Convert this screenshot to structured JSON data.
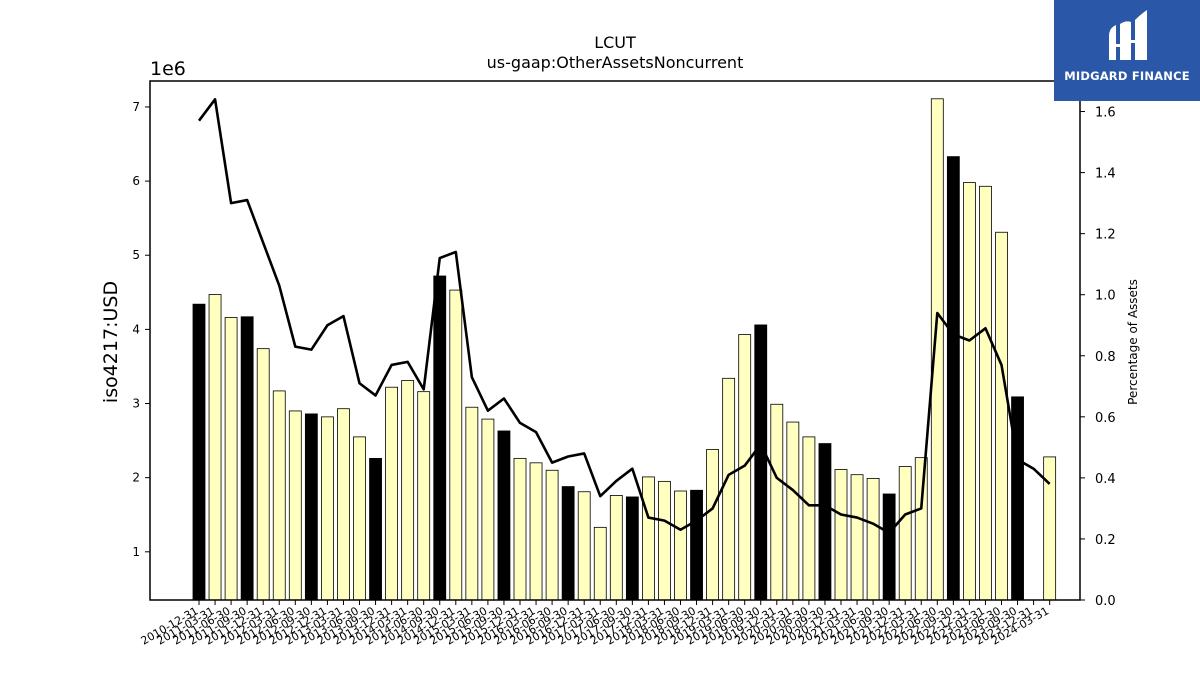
{
  "title": "LCUT",
  "subtitle": "us-gaap:OtherAssetsNoncurrent",
  "brand": {
    "name": "MIDGARD FINANCE",
    "color": "#2a57a8",
    "icon": "midgard-m-logo-icon"
  },
  "colors": {
    "bar_default": "#ffffc0",
    "bar_highlight": "#000000",
    "line": "#000000"
  },
  "chart_data": {
    "type": "bar",
    "left_axis": {
      "label": "iso4217:USD",
      "scale_label": "1e6",
      "ylim": [
        0.35,
        7.35
      ],
      "ticks": [
        1,
        2,
        3,
        4,
        5,
        6,
        7
      ]
    },
    "right_axis": {
      "label": "Percentage of Assets",
      "ylim": [
        0.0,
        1.7
      ],
      "ticks": [
        "0.0",
        "0.2",
        "0.4",
        "0.6",
        "0.8",
        "1.0",
        "1.2",
        "1.4",
        "1.6"
      ]
    },
    "categories": [
      "2010-12-31",
      "2011-03-31",
      "2011-06-30",
      "2011-09-30",
      "2011-12-31",
      "2012-03-31",
      "2012-06-30",
      "2012-09-30",
      "2012-12-31",
      "2013-03-31",
      "2013-06-30",
      "2013-09-30",
      "2013-12-31",
      "2014-03-31",
      "2014-06-30",
      "2014-09-30",
      "2014-12-31",
      "2015-03-31",
      "2015-06-30",
      "2015-09-30",
      "2015-12-31",
      "2016-03-31",
      "2016-06-30",
      "2016-09-30",
      "2016-12-31",
      "2017-03-31",
      "2017-06-30",
      "2017-09-30",
      "2017-12-31",
      "2018-03-31",
      "2018-06-30",
      "2018-09-30",
      "2018-12-31",
      "2019-03-31",
      "2019-06-30",
      "2019-09-30",
      "2019-12-31",
      "2020-03-31",
      "2020-06-30",
      "2020-09-30",
      "2020-12-31",
      "2021-03-31",
      "2021-06-30",
      "2021-09-30",
      "2021-12-31",
      "2022-03-31",
      "2022-06-30",
      "2022-09-30",
      "2022-12-31",
      "2023-03-31",
      "2023-06-30",
      "2023-09-30",
      "2023-12-31",
      "2024-03-31"
    ],
    "series": [
      {
        "kind": "bar",
        "axis": "left",
        "values": [
          4.34,
          4.47,
          4.16,
          4.17,
          3.74,
          3.17,
          2.9,
          2.86,
          2.82,
          2.93,
          2.55,
          2.26,
          3.22,
          3.31,
          3.16,
          4.72,
          4.53,
          2.95,
          2.79,
          2.63,
          2.26,
          2.2,
          2.1,
          1.88,
          1.81,
          1.33,
          1.76,
          1.74,
          2.01,
          1.95,
          1.82,
          1.83,
          2.38,
          3.34,
          3.93,
          4.06,
          2.99,
          2.75,
          2.55,
          2.46,
          2.11,
          2.04,
          1.99,
          1.78,
          2.15,
          2.27,
          7.11,
          6.33,
          5.98,
          5.93,
          5.31,
          3.09,
          0,
          2.28
        ],
        "highlight": [
          1,
          0,
          0,
          1,
          0,
          0,
          0,
          1,
          0,
          0,
          0,
          1,
          0,
          0,
          0,
          1,
          0,
          0,
          0,
          1,
          0,
          0,
          0,
          1,
          0,
          0,
          0,
          1,
          0,
          0,
          0,
          1,
          0,
          0,
          0,
          1,
          0,
          0,
          0,
          1,
          0,
          0,
          0,
          1,
          0,
          0,
          0,
          1,
          0,
          0,
          0,
          1,
          0,
          0
        ]
      },
      {
        "kind": "line",
        "axis": "right",
        "values": [
          1.57,
          1.64,
          1.3,
          1.31,
          1.17,
          1.03,
          0.83,
          0.82,
          0.9,
          0.93,
          0.71,
          0.67,
          0.77,
          0.78,
          0.69,
          1.12,
          1.14,
          0.73,
          0.62,
          0.66,
          0.58,
          0.55,
          0.45,
          0.47,
          0.48,
          0.34,
          0.39,
          0.43,
          0.27,
          0.26,
          0.23,
          0.26,
          0.3,
          0.41,
          0.44,
          0.51,
          0.4,
          0.36,
          0.31,
          0.31,
          0.28,
          0.27,
          0.25,
          0.22,
          0.28,
          0.3,
          0.94,
          0.87,
          0.85,
          0.89,
          0.77,
          0.46,
          0.43,
          0.38
        ]
      }
    ],
    "grid": false,
    "legend": "none"
  }
}
